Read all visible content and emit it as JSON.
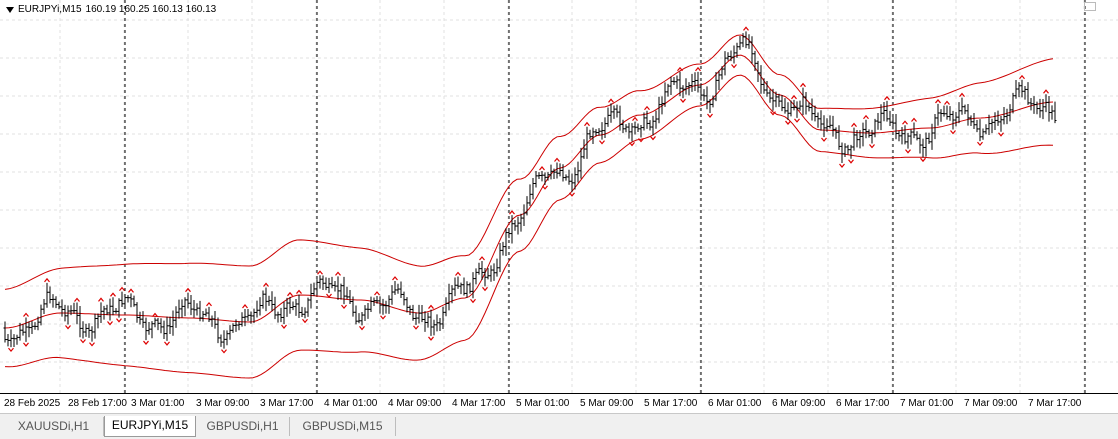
{
  "chart": {
    "symbol": "EURJPYi,M15",
    "ohlc": "160.19 160.25 160.13 160.13",
    "colors": {
      "background": "#ffffff",
      "candle": "#000000",
      "envelope": "#cc0000",
      "fractal": "#dd0000",
      "grid": "#e0e0e0",
      "separator": "#000000"
    }
  },
  "time_axis": [
    "28 Feb 2025",
    "28 Feb 17:00",
    "3 Mar 01:00",
    "3 Mar 09:00",
    "3 Mar 17:00",
    "4 Mar 01:00",
    "4 Mar 09:00",
    "4 Mar 17:00",
    "5 Mar 01:00",
    "5 Mar 09:00",
    "5 Mar 17:00",
    "6 Mar 01:00",
    "6 Mar 09:00",
    "6 Mar 17:00",
    "7 Mar 01:00",
    "7 Mar 09:00",
    "7 Mar 17:00"
  ],
  "tabs": [
    {
      "label": "XAUUSDi,H1",
      "active": false
    },
    {
      "label": "EURJPYi,M15",
      "active": true
    },
    {
      "label": "GBPUSDi,H1",
      "active": false
    },
    {
      "label": "GBPUSDi,M15",
      "active": false
    }
  ]
}
